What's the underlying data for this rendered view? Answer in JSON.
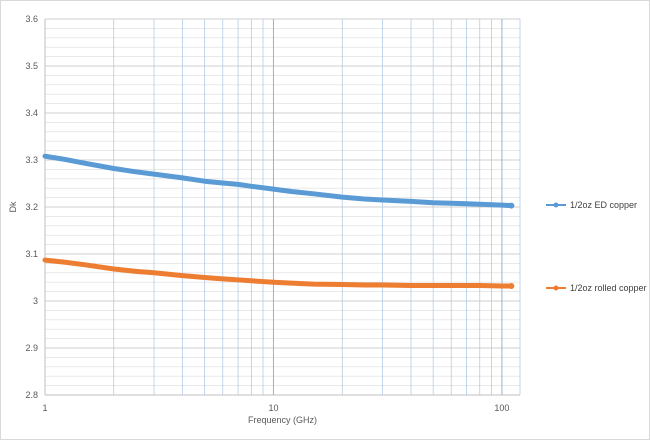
{
  "chart_data": {
    "type": "line",
    "title": "",
    "xlabel": "Frequency (GHz)",
    "ylabel": "Dk",
    "x_scale": "log",
    "xlim": [
      1,
      120
    ],
    "ylim": [
      2.8,
      3.6
    ],
    "x_ticks": [
      "1",
      "10",
      "100"
    ],
    "y_ticks": [
      "2.8",
      "2.9",
      "3",
      "3.1",
      "3.2",
      "3.3",
      "3.4",
      "3.5",
      "3.6"
    ],
    "grid": true,
    "legend_position": "right",
    "series": [
      {
        "name": "1/2oz ED copper",
        "color": "#5b9bd5",
        "x": [
          1,
          1.2,
          1.5,
          2,
          2.5,
          3,
          4,
          5,
          6,
          7,
          8,
          10,
          12,
          15,
          20,
          25,
          30,
          40,
          50,
          60,
          70,
          80,
          100,
          110
        ],
        "y": [
          3.308,
          3.302,
          3.293,
          3.282,
          3.275,
          3.27,
          3.262,
          3.255,
          3.251,
          3.248,
          3.244,
          3.238,
          3.233,
          3.228,
          3.221,
          3.217,
          3.215,
          3.212,
          3.209,
          3.208,
          3.207,
          3.206,
          3.204,
          3.203
        ]
      },
      {
        "name": "1/2oz rolled copper",
        "color": "#ed7d31",
        "x": [
          1,
          1.2,
          1.5,
          2,
          2.5,
          3,
          4,
          5,
          6,
          7,
          8,
          10,
          12,
          15,
          20,
          25,
          30,
          40,
          50,
          60,
          70,
          80,
          100,
          110
        ],
        "y": [
          3.087,
          3.083,
          3.077,
          3.068,
          3.063,
          3.06,
          3.054,
          3.05,
          3.047,
          3.045,
          3.043,
          3.04,
          3.038,
          3.036,
          3.035,
          3.034,
          3.034,
          3.033,
          3.033,
          3.033,
          3.033,
          3.033,
          3.032,
          3.032
        ]
      }
    ]
  }
}
